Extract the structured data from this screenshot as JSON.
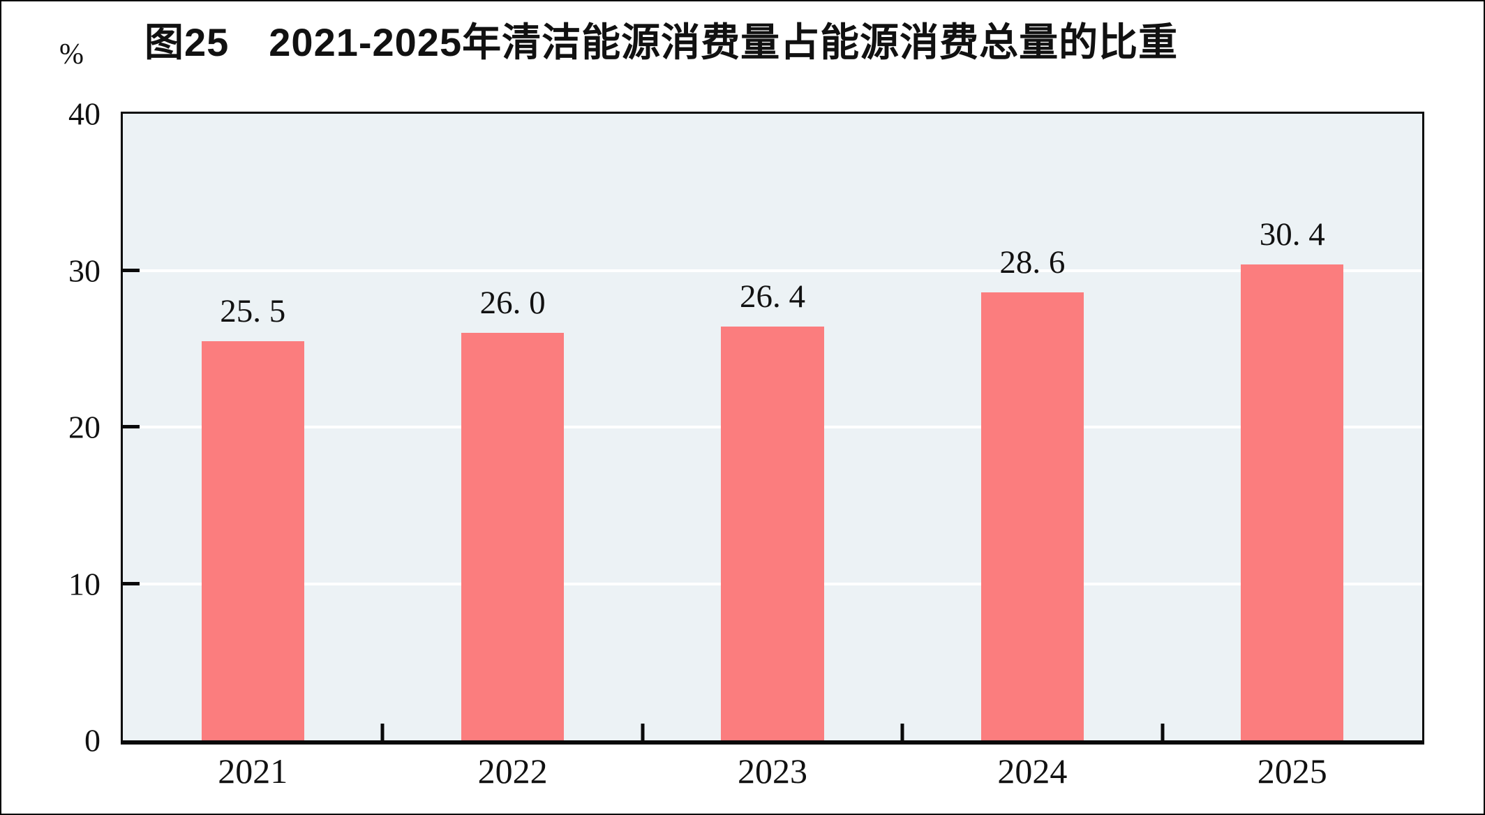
{
  "chart_data": {
    "type": "bar",
    "title": "图25　2021-2025年清洁能源消费量占能源消费总量的比重",
    "unit": "%",
    "categories": [
      "2021",
      "2022",
      "2023",
      "2024",
      "2025"
    ],
    "values": [
      25.5,
      26.0,
      26.4,
      28.6,
      30.4
    ],
    "value_labels": [
      "25. 5",
      "26. 0",
      "26. 4",
      "28. 6",
      "30. 4"
    ],
    "xlabel": "",
    "ylabel": "%",
    "ylim": [
      0,
      40
    ],
    "yticks": [
      0,
      10,
      20,
      30,
      40
    ],
    "grid": "horizontal-white",
    "legend_position": "none",
    "colors": {
      "bar": "#FB7D7E",
      "plot_background": "#ECF2F5",
      "gridline": "#FFFFFF",
      "axis": "#0A0A0A",
      "text": "#111111",
      "page_background": "#FFFFFF"
    }
  }
}
